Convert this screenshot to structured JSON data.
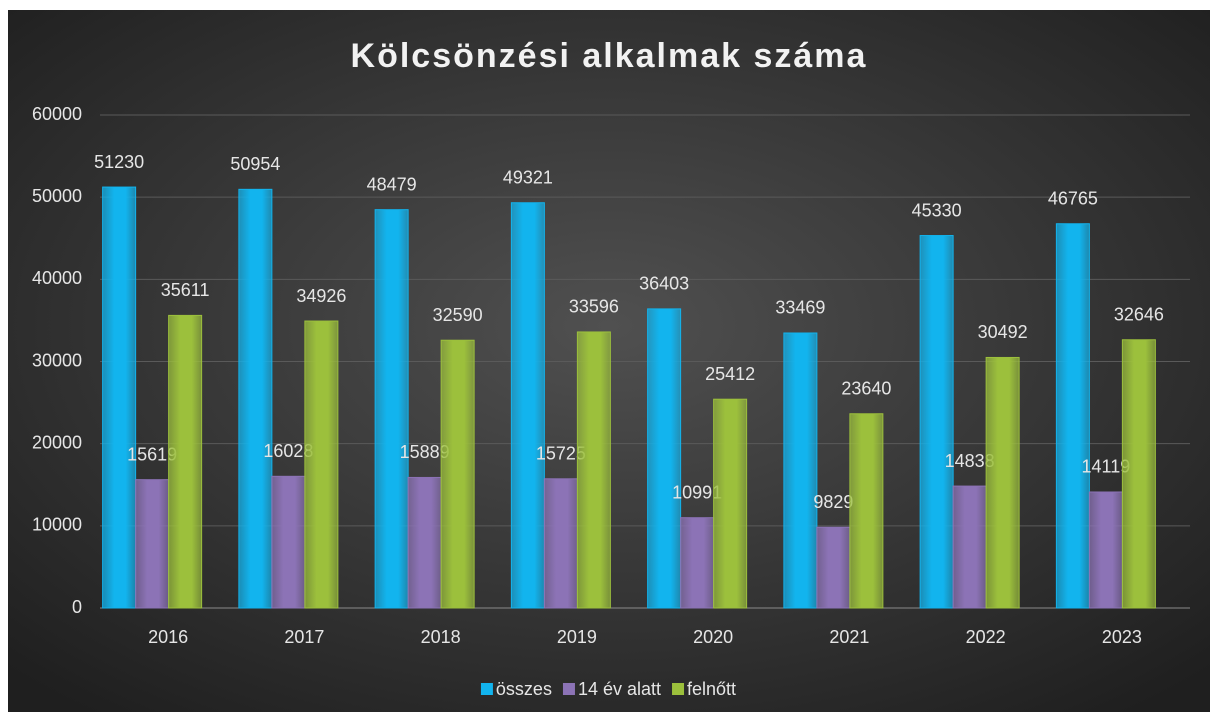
{
  "chart_data": {
    "type": "bar",
    "title": "Kölcsönzési alkalmak száma",
    "categories": [
      "2016",
      "2017",
      "2018",
      "2019",
      "2020",
      "2021",
      "2022",
      "2023"
    ],
    "series": [
      {
        "name": "összes",
        "color": "#12b4ee",
        "values": [
          51230,
          50954,
          48479,
          49321,
          36403,
          33469,
          45330,
          46765
        ]
      },
      {
        "name": "14 év alatt",
        "color": "#8c73b6",
        "values": [
          15619,
          16028,
          15889,
          15725,
          10991,
          9829,
          14838,
          14119
        ]
      },
      {
        "name": "felnőtt",
        "color": "#9cc03c",
        "values": [
          35611,
          34926,
          32590,
          33596,
          25412,
          23640,
          30492,
          32646
        ]
      }
    ],
    "ylim": [
      0,
      60000
    ],
    "yticks": [
      0,
      10000,
      20000,
      30000,
      40000,
      50000,
      60000
    ],
    "grid": true,
    "legend": "bottom"
  }
}
